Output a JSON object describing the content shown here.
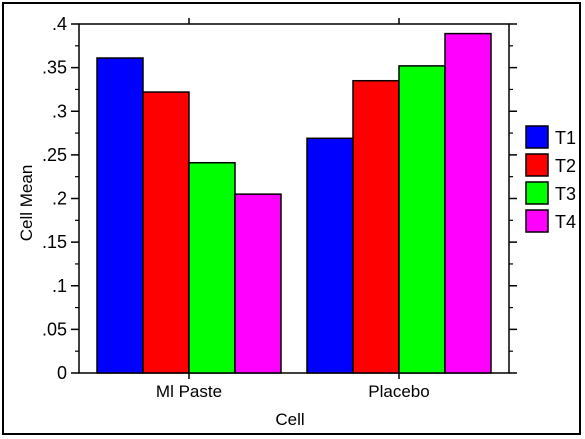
{
  "chart_data": {
    "type": "bar",
    "title": "",
    "xlabel": "Cell",
    "ylabel": "Cell Mean",
    "ylim": [
      0,
      0.4
    ],
    "yticks": [
      0,
      0.05,
      0.1,
      0.15,
      0.2,
      0.25,
      0.3,
      0.35,
      0.4
    ],
    "ytick_labels": [
      "0",
      ".05",
      ".1",
      ".15",
      ".2",
      ".25",
      ".3",
      ".35",
      ".4"
    ],
    "categories": [
      "Ml Paste",
      "Placebo"
    ],
    "series": [
      {
        "name": "T1",
        "color": "#0000ff",
        "values": [
          0.361,
          0.269
        ]
      },
      {
        "name": "T2",
        "color": "#ff0000",
        "values": [
          0.322,
          0.335
        ]
      },
      {
        "name": "T3",
        "color": "#00ff00",
        "values": [
          0.241,
          0.352
        ]
      },
      {
        "name": "T4",
        "color": "#ff00ff",
        "values": [
          0.205,
          0.389
        ]
      }
    ],
    "legend_position": "right",
    "grid": false
  }
}
